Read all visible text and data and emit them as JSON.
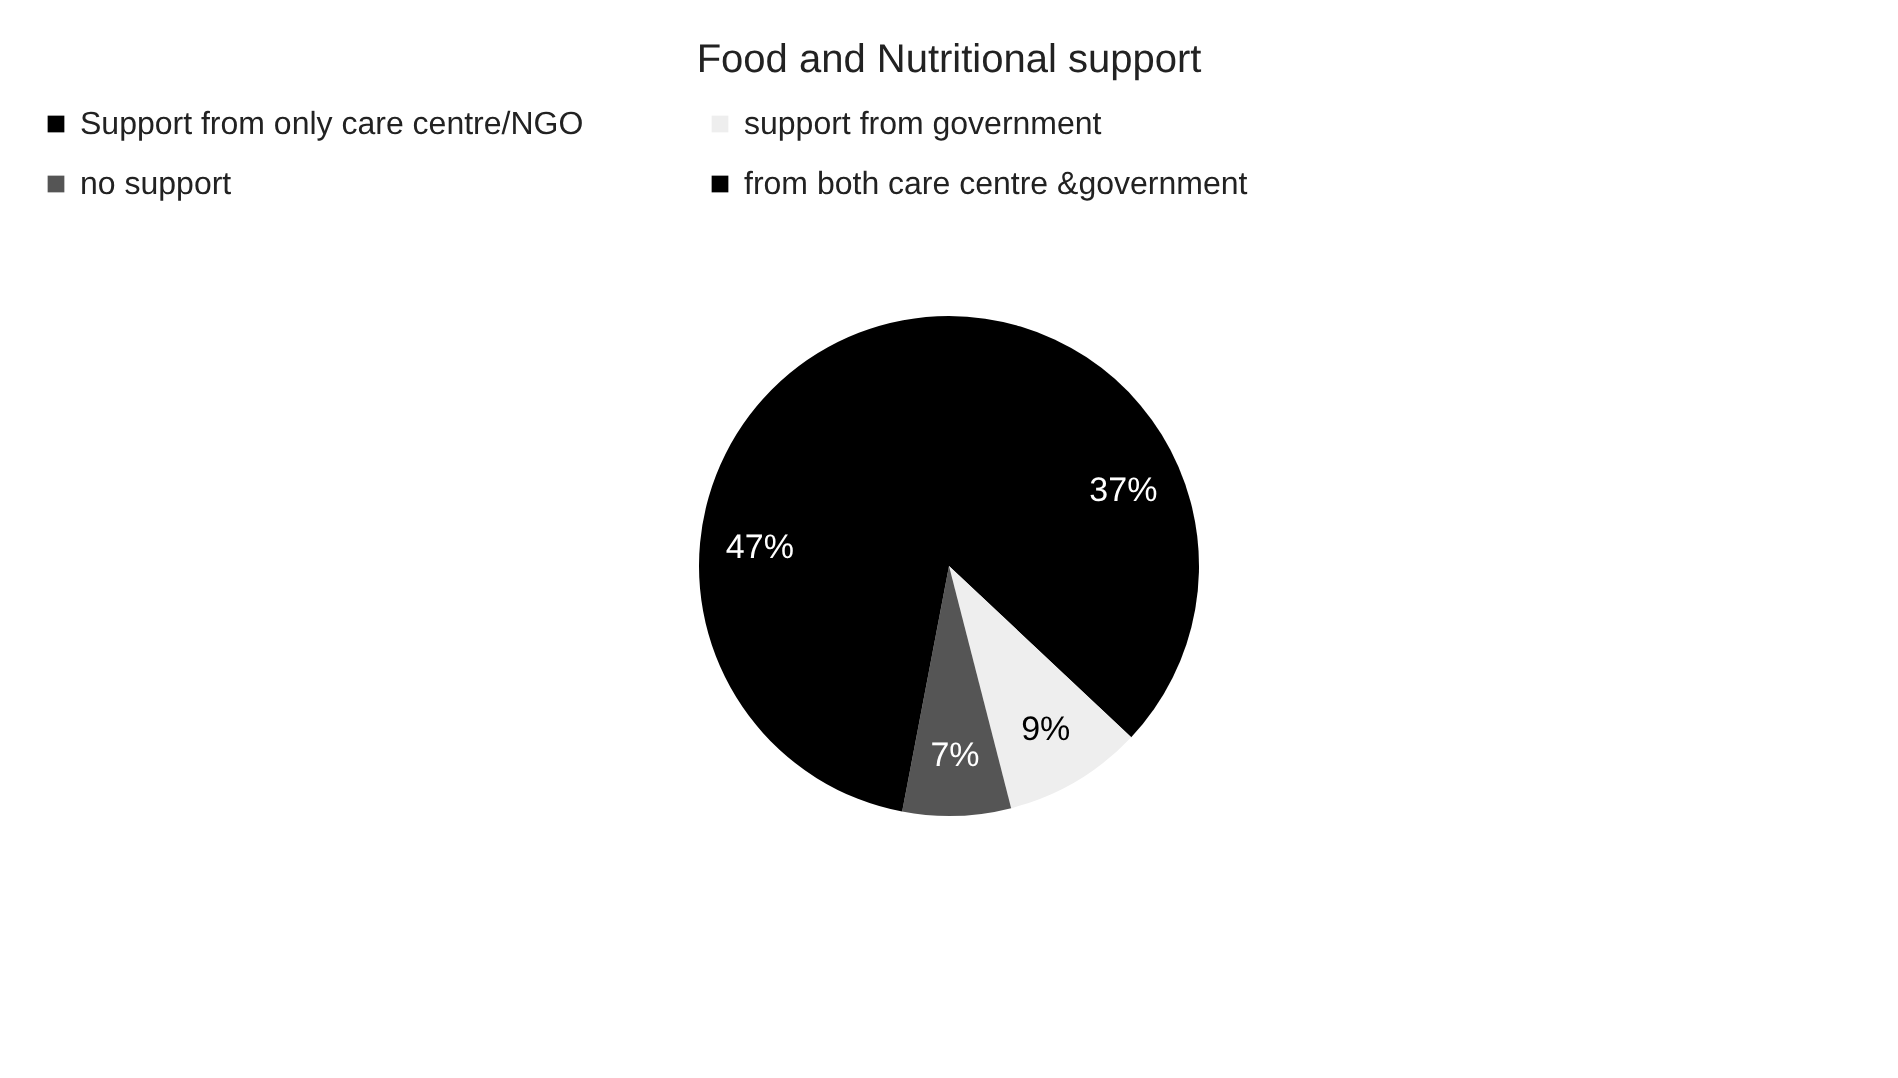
{
  "chart_data": {
    "type": "pie",
    "title": "Food and Nutritional support",
    "categories": [
      "Support from only care centre/NGO",
      "support from government",
      "no support",
      "from both care centre &government"
    ],
    "values": [
      37,
      9,
      7,
      47
    ],
    "colors": [
      "#000000",
      "#eeeeee",
      "#555555",
      "#000000"
    ],
    "value_labels": [
      "37%",
      "9%",
      "7%",
      "47%"
    ],
    "legend": "top"
  }
}
